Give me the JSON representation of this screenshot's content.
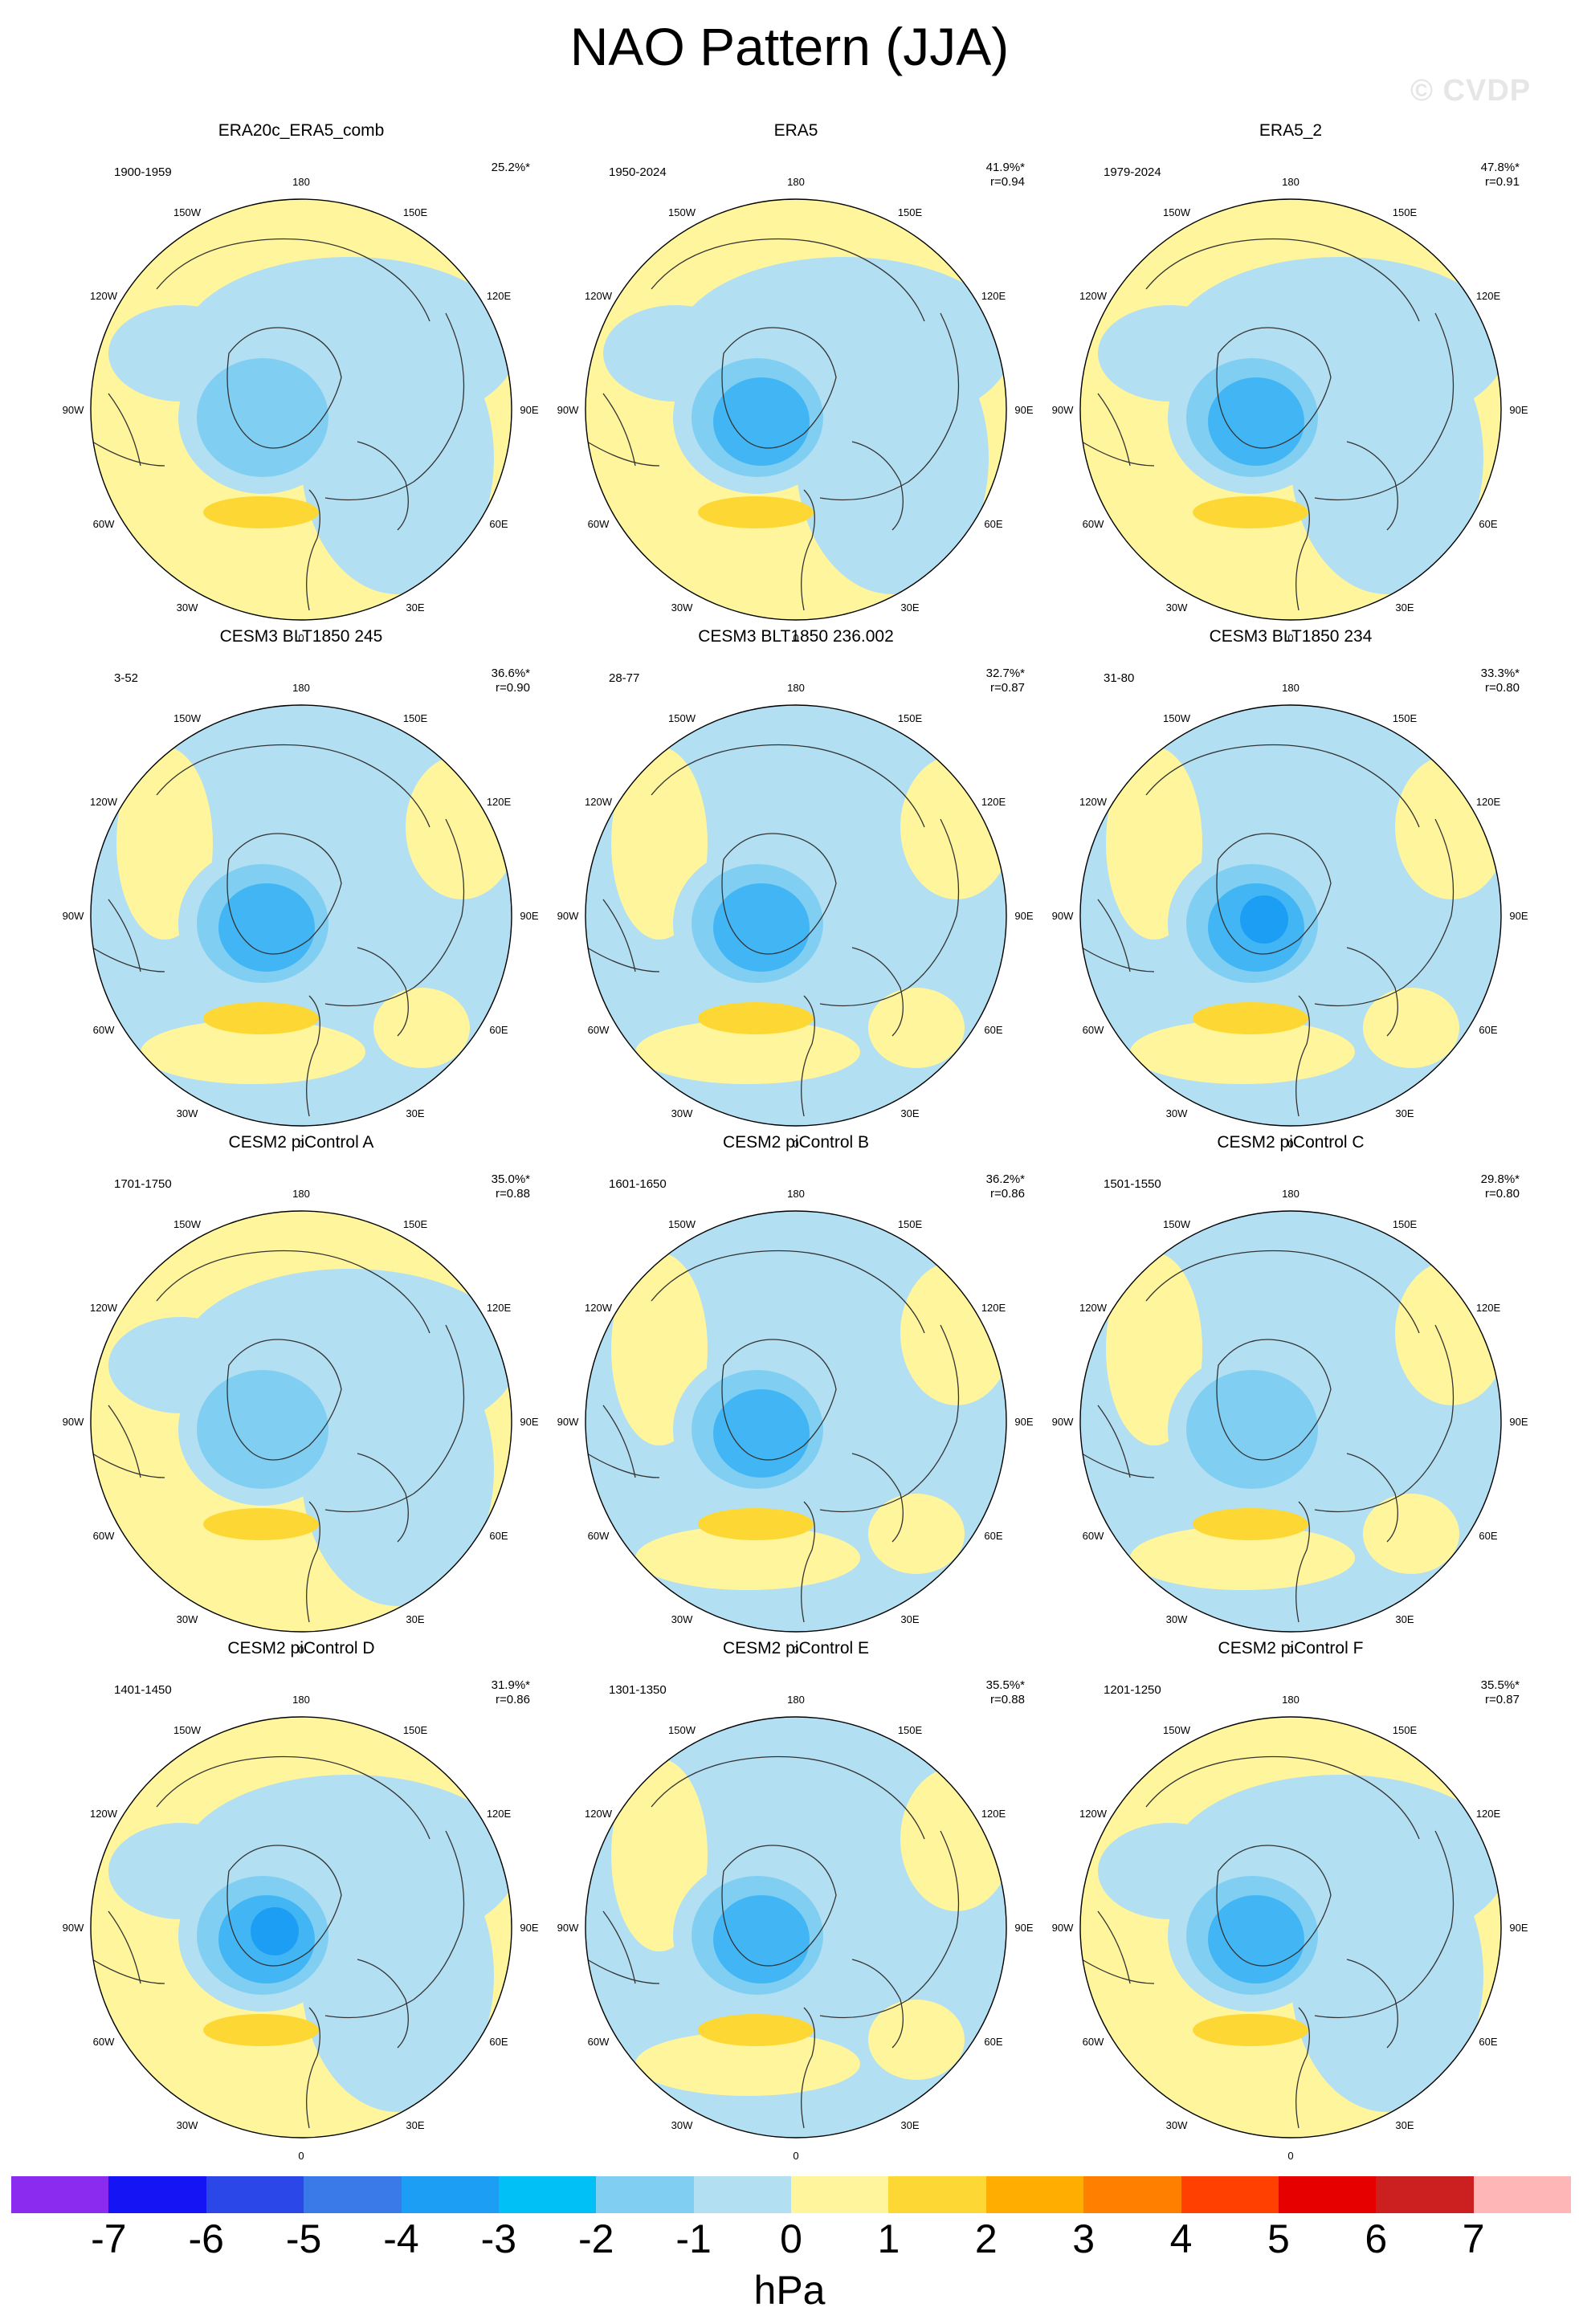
{
  "title": "NAO Pattern (JJA)",
  "watermark": "© CVDP",
  "lon_labels": [
    "180",
    "150E",
    "120E",
    "90E",
    "60E",
    "30E",
    "0",
    "30W",
    "60W",
    "90W",
    "120W",
    "150W"
  ],
  "colors": {
    "pos1": "#fff59d",
    "pos2": "#fdd835",
    "neg1": "#b3dff2",
    "neg2": "#80cff2",
    "neg3": "#42b6f5",
    "neg4": "#1c9ef5",
    "ocean_bg": "#fff59d",
    "coast": "#333333"
  },
  "panels": [
    {
      "title": "ERA20c_ERA5_comb",
      "period": "1900-1959",
      "pct": "25.2%*",
      "r": "",
      "base": "pos",
      "center": 2
    },
    {
      "title": "ERA5",
      "period": "1950-2024",
      "pct": "41.9%*",
      "r": "r=0.94",
      "base": "pos",
      "center": 3
    },
    {
      "title": "ERA5_2",
      "period": "1979-2024",
      "pct": "47.8%*",
      "r": "r=0.91",
      "base": "pos",
      "center": 3
    },
    {
      "title": "CESM3 BLT1850 245",
      "period": "3-52",
      "pct": "36.6%*",
      "r": "r=0.90",
      "base": "neg",
      "center": 3
    },
    {
      "title": "CESM3 BLT1850 236.002",
      "period": "28-77",
      "pct": "32.7%*",
      "r": "r=0.87",
      "base": "neg",
      "center": 3
    },
    {
      "title": "CESM3 BLT1850 234",
      "period": "31-80",
      "pct": "33.3%*",
      "r": "r=0.80",
      "base": "neg",
      "center": 4
    },
    {
      "title": "CESM2 piControl A",
      "period": "1701-1750",
      "pct": "35.0%*",
      "r": "r=0.88",
      "base": "pos",
      "center": 2
    },
    {
      "title": "CESM2 piControl B",
      "period": "1601-1650",
      "pct": "36.2%*",
      "r": "r=0.86",
      "base": "neg",
      "center": 3
    },
    {
      "title": "CESM2 piControl C",
      "period": "1501-1550",
      "pct": "29.8%*",
      "r": "r=0.80",
      "base": "neg",
      "center": 2
    },
    {
      "title": "CESM2 piControl D",
      "period": "1401-1450",
      "pct": "31.9%*",
      "r": "r=0.86",
      "base": "pos",
      "center": 4
    },
    {
      "title": "CESM2 piControl E",
      "period": "1301-1350",
      "pct": "35.5%*",
      "r": "r=0.88",
      "base": "neg",
      "center": 3
    },
    {
      "title": "CESM2 piControl F",
      "period": "1201-1250",
      "pct": "35.5%*",
      "r": "r=0.87",
      "base": "pos",
      "center": 3
    }
  ],
  "colorbar": {
    "colors": [
      "#8b2bf0",
      "#1414f5",
      "#2b47e8",
      "#3a7ae8",
      "#1c9ef5",
      "#00c0f5",
      "#80cff2",
      "#b3dff2",
      "#fff59d",
      "#fdd835",
      "#ffad00",
      "#ff7f00",
      "#ff4000",
      "#e60000",
      "#cc1f1f",
      "#ffb6b6"
    ],
    "ticks": [
      "-7",
      "-6",
      "-5",
      "-4",
      "-3",
      "-2",
      "-1",
      "0",
      "1",
      "2",
      "3",
      "4",
      "5",
      "6",
      "7"
    ],
    "unit": "hPa"
  }
}
